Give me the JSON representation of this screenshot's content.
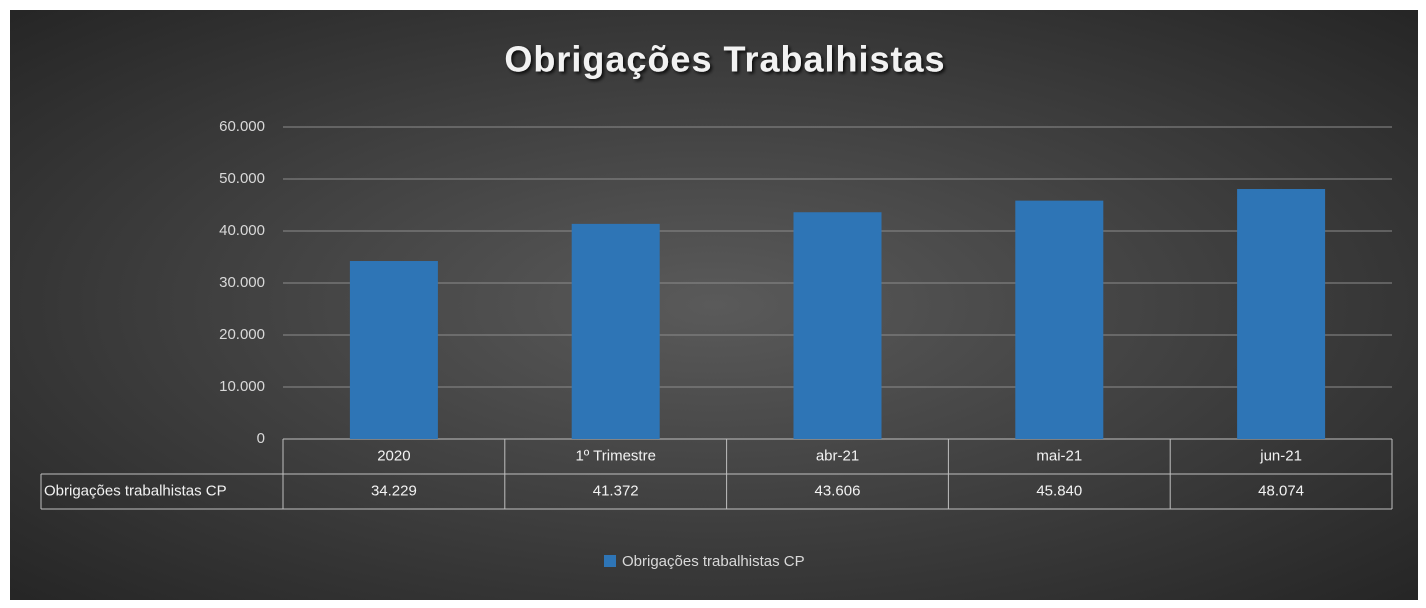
{
  "chart_data": {
    "type": "bar",
    "title": "Obrigações Trabalhistas",
    "categories": [
      "2020",
      "1º Trimestre",
      "abr-21",
      "mai-21",
      "jun-21"
    ],
    "series": [
      {
        "name": "Obrigações trabalhistas CP",
        "color": "#2e75b6",
        "values": [
          34229,
          41372,
          43606,
          45840,
          48074
        ],
        "value_labels": [
          "34.229",
          "41.372",
          "43.606",
          "45.840",
          "48.074"
        ]
      }
    ],
    "ylim": [
      0,
      60000
    ],
    "yticks": [
      0,
      {
        "value": 10000,
        "label": "10.000"
      },
      {
        "value": 20000,
        "label": "20.000"
      },
      {
        "value": 30000,
        "label": "30.000"
      },
      {
        "value": 40000,
        "label": "40.000"
      },
      {
        "value": 50000,
        "label": "50.000"
      },
      {
        "value": 60000,
        "label": "60.000"
      }
    ],
    "grid": true,
    "legend": "bottom"
  }
}
